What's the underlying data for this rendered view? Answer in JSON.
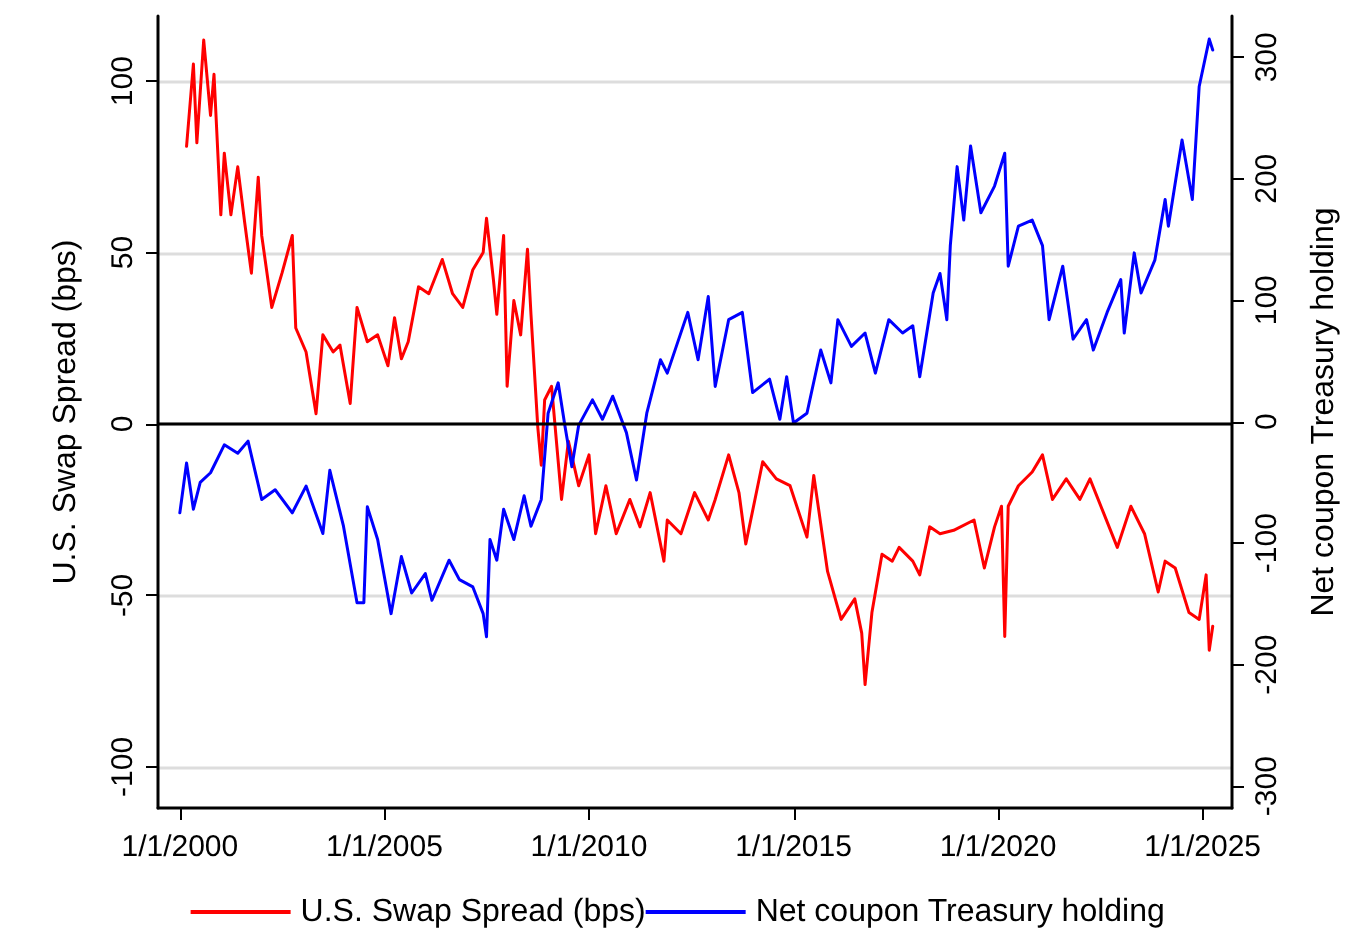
{
  "chart_data": {
    "type": "line",
    "ylabel": "U.S. Swap Spread (bps)",
    "y2label": "Net coupon Treasury holding",
    "xlim": [
      "1999-06-20",
      "2025-09-20"
    ],
    "xticks": [
      {
        "value": "2000-01-01",
        "label": "1/1/2000"
      },
      {
        "value": "2005-01-01",
        "label": "1/1/2005"
      },
      {
        "value": "2010-01-01",
        "label": "1/1/2010"
      },
      {
        "value": "2015-01-01",
        "label": "1/1/2015"
      },
      {
        "value": "2020-01-01",
        "label": "1/1/2020"
      },
      {
        "value": "2025-01-01",
        "label": "1/1/2025"
      }
    ],
    "ylim": [
      -112,
      119
    ],
    "yticks": [
      -100,
      -50,
      0,
      50,
      100
    ],
    "y2lim": [
      -318,
      334
    ],
    "y2ticks": [
      -300,
      -200,
      -100,
      0,
      100,
      200,
      300
    ],
    "grid": "y",
    "legend": "bottom",
    "line_style": "solid",
    "marker": "none",
    "ref_lines": [
      {
        "axis": "y",
        "value": 0,
        "color": "#000000"
      }
    ],
    "series": [
      {
        "name": "U.S. Swap Spread (bps)",
        "color": "#ff0000",
        "x": [
          "2000-03",
          "2000-05",
          "2000-06",
          "2000-08",
          "2000-10",
          "2000-11",
          "2001-01",
          "2001-02",
          "2001-04",
          "2001-06",
          "2001-08",
          "2001-10",
          "2001-12",
          "2002-01",
          "2002-04",
          "2002-07",
          "2002-10",
          "2002-11",
          "2003-02",
          "2003-05",
          "2003-07",
          "2003-10",
          "2003-12",
          "2004-03",
          "2004-05",
          "2004-08",
          "2004-11",
          "2005-02",
          "2005-04",
          "2005-06",
          "2005-08",
          "2005-11",
          "2006-02",
          "2006-06",
          "2006-09",
          "2006-12",
          "2007-03",
          "2007-06",
          "2007-07",
          "2007-09",
          "2007-10",
          "2007-12",
          "2008-01",
          "2008-03",
          "2008-05",
          "2008-07",
          "2008-08",
          "2008-10",
          "2008-11",
          "2008-12",
          "2009-02",
          "2009-05",
          "2009-07",
          "2009-10",
          "2010-01",
          "2010-03",
          "2010-06",
          "2010-09",
          "2011-01",
          "2011-04",
          "2011-07",
          "2011-11",
          "2011-12",
          "2012-04",
          "2012-08",
          "2012-12",
          "2013-02",
          "2013-06",
          "2013-09",
          "2013-11",
          "2014-04",
          "2014-08",
          "2014-12",
          "2015-05",
          "2015-07",
          "2015-11",
          "2016-03",
          "2016-07",
          "2016-09",
          "2016-10",
          "2016-12",
          "2017-03",
          "2017-06",
          "2017-08",
          "2017-12",
          "2018-02",
          "2018-05",
          "2018-08",
          "2018-12",
          "2019-06",
          "2019-09",
          "2019-12",
          "2020-02",
          "2020-03",
          "2020-04",
          "2020-07",
          "2020-11",
          "2021-02",
          "2021-05",
          "2021-09",
          "2022-01",
          "2022-04",
          "2022-08",
          "2022-12",
          "2023-04",
          "2023-08",
          "2023-12",
          "2024-02",
          "2024-05",
          "2024-09",
          "2024-12",
          "2025-02",
          "2025-03",
          "2025-04"
        ],
        "values": [
          81,
          105,
          82,
          112,
          90,
          102,
          61,
          79,
          61,
          75,
          59,
          44,
          72,
          55,
          34,
          44,
          55,
          28,
          21,
          3,
          26,
          21,
          23,
          6,
          34,
          24,
          26,
          17,
          31,
          19,
          24,
          40,
          38,
          48,
          38,
          34,
          45,
          50,
          60,
          42,
          32,
          55,
          11,
          36,
          26,
          51,
          32,
          -1,
          -12,
          7,
          11,
          -22,
          -5,
          -18,
          -9,
          -32,
          -18,
          -32,
          -22,
          -30,
          -20,
          -40,
          -28,
          -32,
          -20,
          -28,
          -22,
          -9,
          -20,
          -35,
          -11,
          -16,
          -18,
          -33,
          -15,
          -43,
          -57,
          -51,
          -61,
          -76,
          -55,
          -38,
          -40,
          -36,
          -40,
          -44,
          -30,
          -32,
          -31,
          -28,
          -42,
          -30,
          -24,
          -62,
          -24,
          -18,
          -14,
          -9,
          -22,
          -16,
          -22,
          -16,
          -26,
          -36,
          -24,
          -32,
          -49,
          -40,
          -42,
          -55,
          -57,
          -44,
          -66,
          -59
        ]
      },
      {
        "name": "Net coupon Treasury holding",
        "color": "#0000ff",
        "axis": "y2",
        "x": [
          "2000-01",
          "2000-03",
          "2000-05",
          "2000-07",
          "2000-10",
          "2001-02",
          "2001-06",
          "2001-09",
          "2002-01",
          "2002-05",
          "2002-10",
          "2003-02",
          "2003-07",
          "2003-09",
          "2004-01",
          "2004-05",
          "2004-07",
          "2004-08",
          "2004-11",
          "2005-03",
          "2005-06",
          "2005-09",
          "2006-01",
          "2006-03",
          "2006-08",
          "2006-11",
          "2007-03",
          "2007-06",
          "2007-07",
          "2007-08",
          "2007-10",
          "2007-12",
          "2008-03",
          "2008-06",
          "2008-08",
          "2008-11",
          "2009-01",
          "2009-04",
          "2009-06",
          "2009-08",
          "2009-10",
          "2010-02",
          "2010-05",
          "2010-08",
          "2010-12",
          "2011-03",
          "2011-06",
          "2011-10",
          "2011-12",
          "2012-06",
          "2012-09",
          "2012-12",
          "2013-02",
          "2013-06",
          "2013-10",
          "2014-01",
          "2014-06",
          "2014-09",
          "2014-11",
          "2015-01",
          "2015-05",
          "2015-09",
          "2015-12",
          "2016-02",
          "2016-06",
          "2016-10",
          "2017-01",
          "2017-05",
          "2017-09",
          "2017-12",
          "2018-02",
          "2018-06",
          "2018-08",
          "2018-10",
          "2018-11",
          "2019-01",
          "2019-03",
          "2019-05",
          "2019-08",
          "2019-12",
          "2020-03",
          "2020-04",
          "2020-07",
          "2020-11",
          "2021-02",
          "2021-04",
          "2021-08",
          "2021-11",
          "2022-03",
          "2022-05",
          "2022-09",
          "2023-01",
          "2023-02",
          "2023-05",
          "2023-07",
          "2023-11",
          "2024-02",
          "2024-03",
          "2024-07",
          "2024-10",
          "2024-12",
          "2025-03",
          "2025-04"
        ],
        "values": [
          -75,
          -34,
          -72,
          -50,
          -42,
          -19,
          -26,
          -16,
          -64,
          -56,
          -75,
          -53,
          -92,
          -40,
          -86,
          -149,
          -149,
          -70,
          -97,
          -158,
          -111,
          -141,
          -125,
          -147,
          -114,
          -130,
          -136,
          -158,
          -177,
          -97,
          -114,
          -72,
          -97,
          -61,
          -86,
          -64,
          7,
          32,
          -4,
          -37,
          -3,
          18,
          2,
          21,
          -9,
          -48,
          7,
          51,
          40,
          90,
          51,
          103,
          29,
          84,
          90,
          24,
          35,
          2,
          37,
          -1,
          7,
          59,
          32,
          84,
          62,
          73,
          40,
          84,
          73,
          79,
          37,
          106,
          122,
          84,
          145,
          210,
          166,
          227,
          172,
          194,
          221,
          128,
          161,
          166,
          145,
          84,
          128,
          68,
          84,
          59,
          90,
          117,
          73,
          139,
          106,
          133,
          183,
          161,
          232,
          183,
          276,
          315,
          306
        ]
      }
    ]
  }
}
